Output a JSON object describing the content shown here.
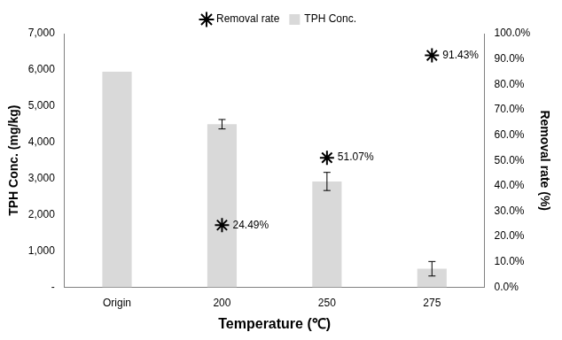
{
  "chart_data": {
    "type": "bar",
    "categories": [
      "Origin",
      "200",
      "250",
      "275"
    ],
    "x_label": "Temperature (℃)",
    "y_label": "TPH Conc. (mg/kg)",
    "y2_label": "Removal rate (%)",
    "ylim": [
      0,
      7000
    ],
    "yticks": [
      {
        "value": 0,
        "label": "-"
      },
      {
        "value": 1000,
        "label": "1,000"
      },
      {
        "value": 2000,
        "label": "2,000"
      },
      {
        "value": 3000,
        "label": "3,000"
      },
      {
        "value": 4000,
        "label": "4,000"
      },
      {
        "value": 5000,
        "label": "5,000"
      },
      {
        "value": 6000,
        "label": "6,000"
      },
      {
        "value": 7000,
        "label": "7,000"
      }
    ],
    "y2lim": [
      0,
      100
    ],
    "y2ticks": [
      {
        "value": 0,
        "label": "0.0%"
      },
      {
        "value": 10,
        "label": "10.0%"
      },
      {
        "value": 20,
        "label": "20.0%"
      },
      {
        "value": 30,
        "label": "30.0%"
      },
      {
        "value": 40,
        "label": "40.0%"
      },
      {
        "value": 50,
        "label": "50.0%"
      },
      {
        "value": 60,
        "label": "60.0%"
      },
      {
        "value": 70,
        "label": "70.0%"
      },
      {
        "value": 80,
        "label": "80.0%"
      },
      {
        "value": 90,
        "label": "90.0%"
      },
      {
        "value": 100,
        "label": "100.0%"
      }
    ],
    "grid": false,
    "legend": "top",
    "series": [
      {
        "name": "TPH Conc.",
        "type": "bar",
        "color": "#d9d9d9",
        "values": [
          5950,
          4500,
          2920,
          510
        ],
        "errors": [
          null,
          130,
          250,
          200
        ]
      },
      {
        "name": "Removal rate",
        "type": "scatter",
        "axis": "y2",
        "color": "#000000",
        "marker": "star",
        "line_style": "none",
        "values": [
          null,
          24.49,
          51.07,
          91.43
        ],
        "value_labels": [
          null,
          "24.49%",
          "51.07%",
          "91.43%"
        ],
        "data_labels": true
      }
    ]
  }
}
